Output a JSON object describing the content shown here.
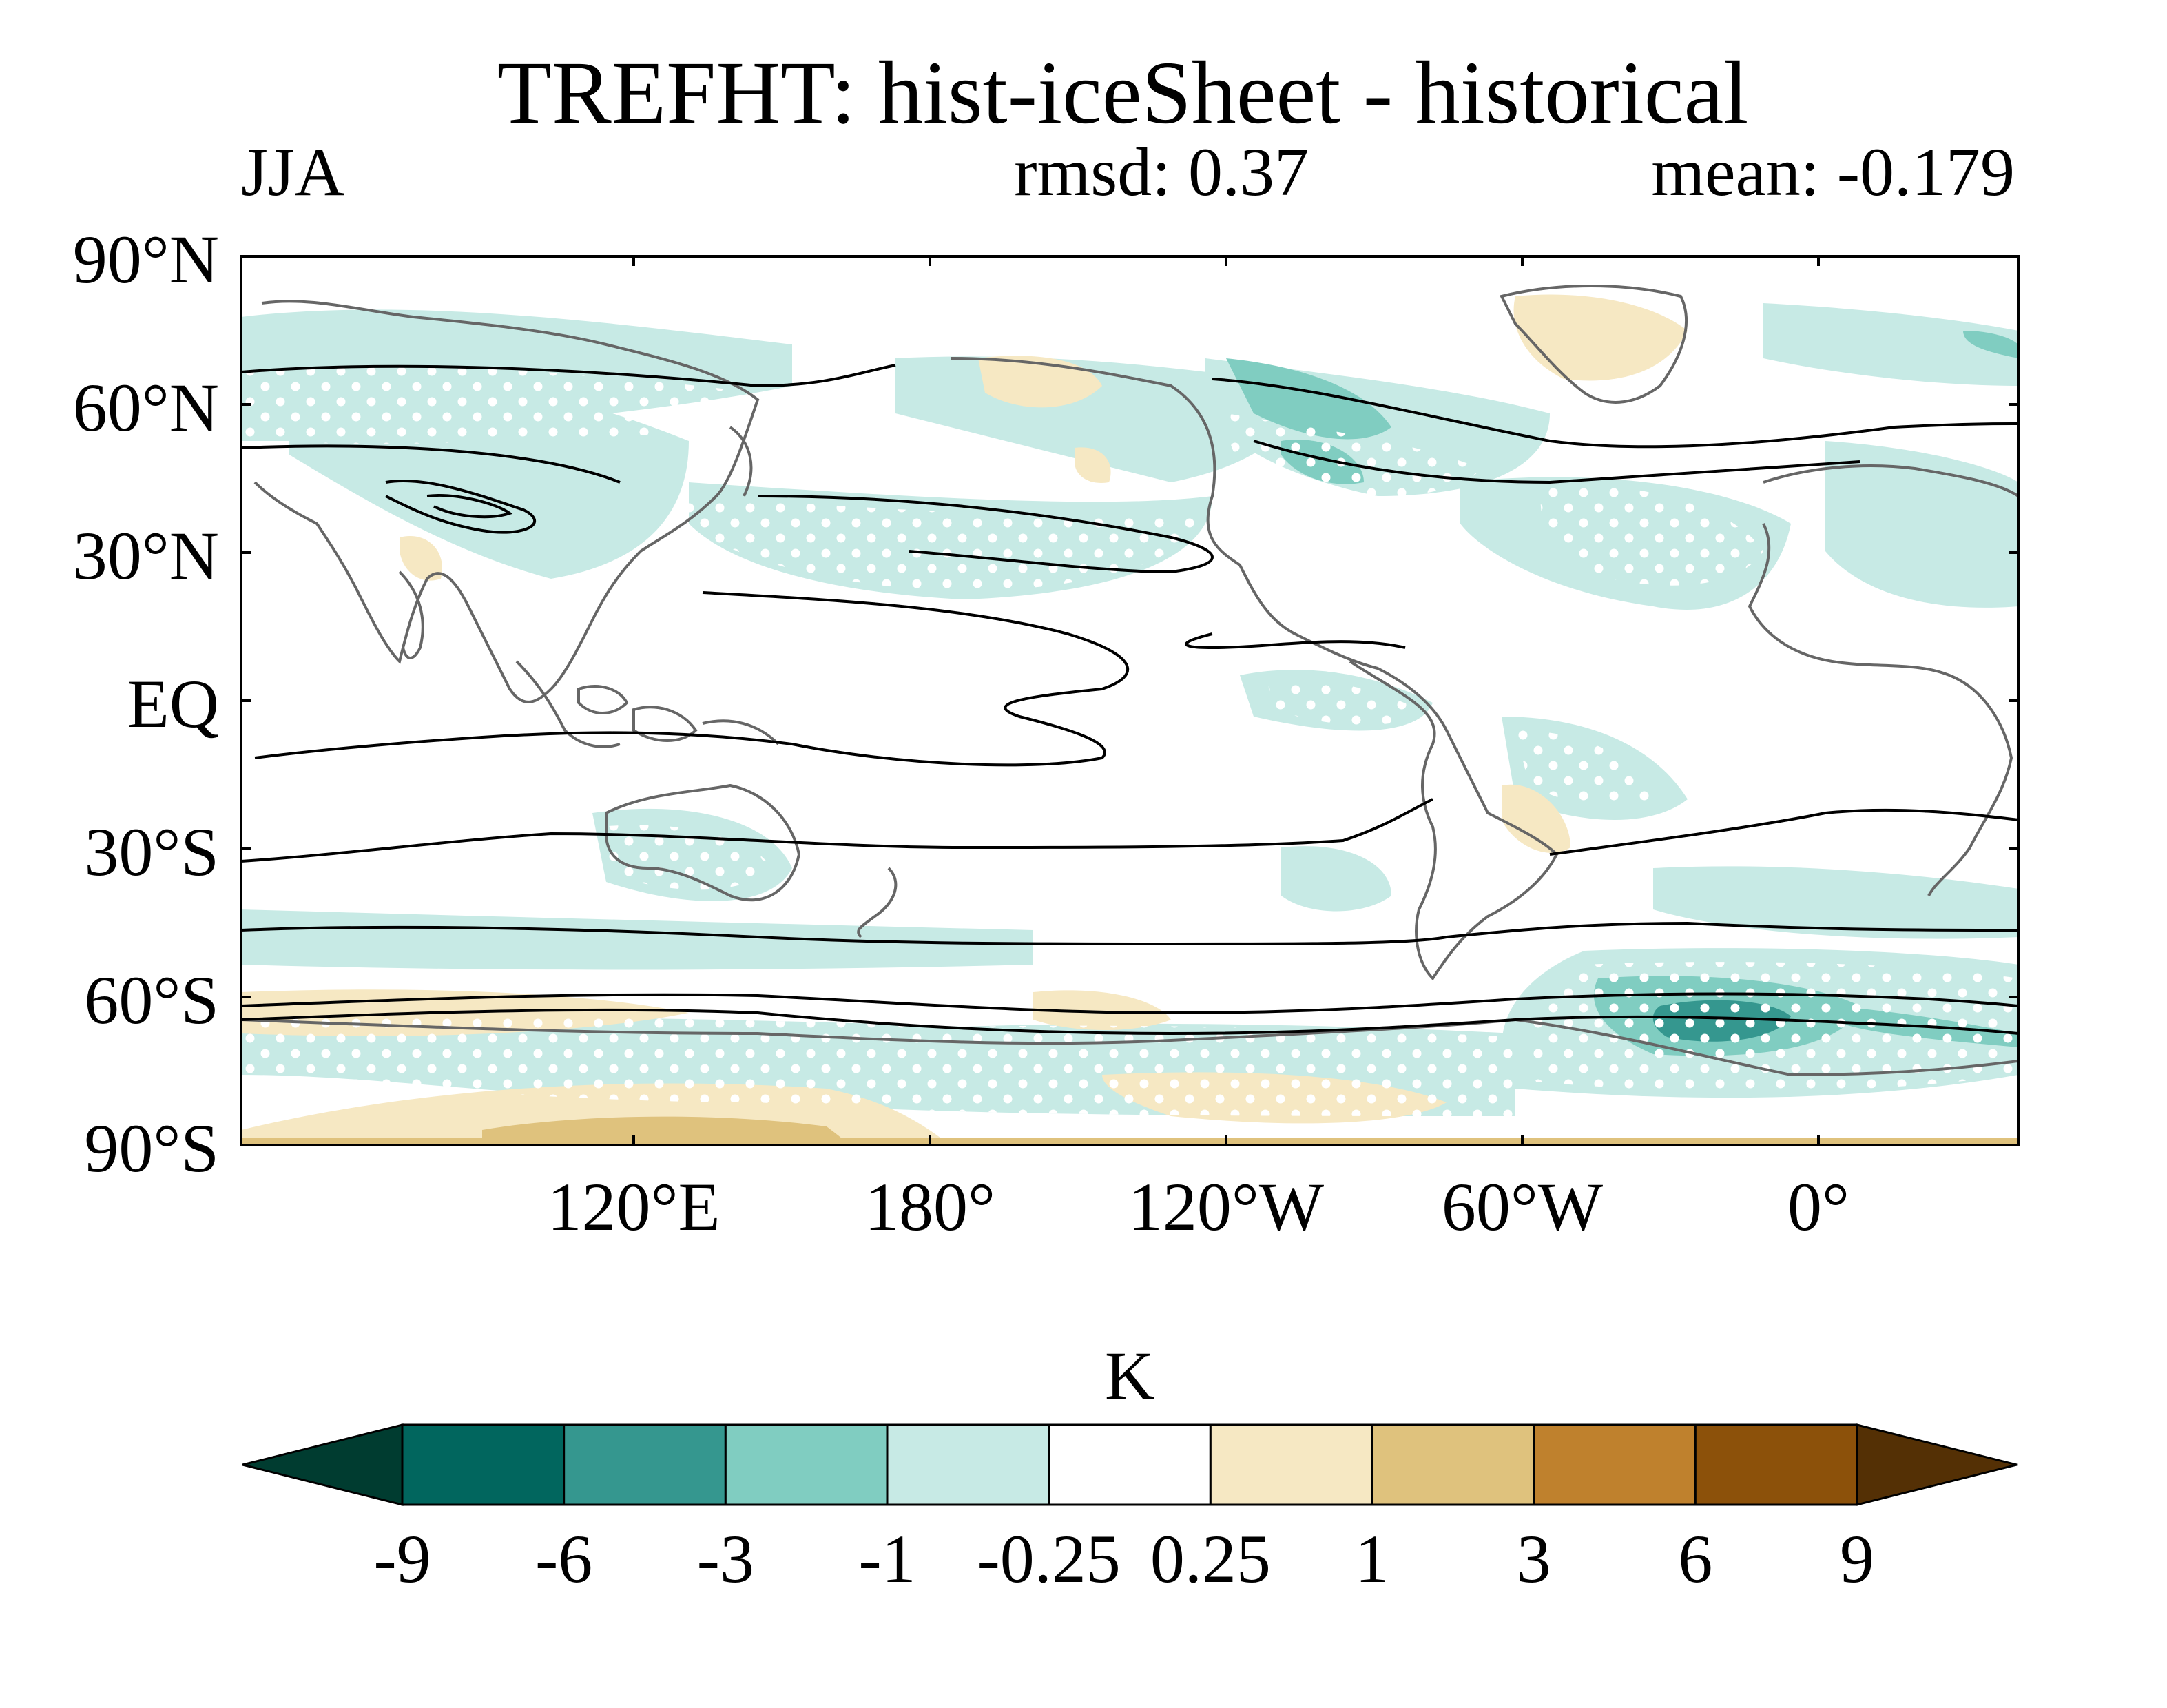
{
  "title": "TREFHT: hist-iceSheet - historical",
  "season": "JJA",
  "stats": {
    "rmsd": "rmsd: 0.37",
    "mean": "mean: -0.179"
  },
  "map": {
    "lat_labels": [
      "90°N",
      "60°N",
      "30°N",
      "EQ",
      "30°S",
      "60°S",
      "90°S"
    ],
    "lon_labels": [
      "120°E",
      "180°",
      "120°W",
      "60°W",
      "0°"
    ]
  },
  "colorbar": {
    "unit": "K",
    "tick_labels": [
      "-9",
      "-6",
      "-3",
      "-1",
      "-0.25",
      "0.25",
      "1",
      "3",
      "6",
      "9"
    ],
    "colors": [
      "#003c30",
      "#01665e",
      "#35978f",
      "#80cdc1",
      "#c7eae5",
      "#ffffff",
      "#f6e8c3",
      "#dfc27d",
      "#bf812d",
      "#8c510a",
      "#543005"
    ]
  },
  "colors": {
    "land_outline": "#666666",
    "contour_line": "#000000",
    "stipple": "#ffffff"
  }
}
